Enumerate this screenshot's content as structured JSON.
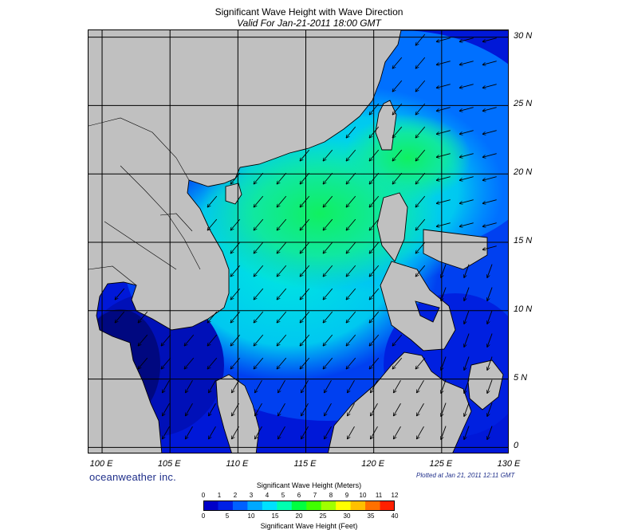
{
  "title": "Significant Wave Height with Wave Direction",
  "subtitle": "Valid For Jan-21-2011 18:00 GMT",
  "map": {
    "lon_range": [
      99,
      130
    ],
    "lat_range": [
      -0.5,
      30.5
    ],
    "lat_labels": [
      "30 N",
      "25 N",
      "20 N",
      "15 N",
      "10 N",
      "5 N",
      "0"
    ],
    "lat_values": [
      30,
      25,
      20,
      15,
      10,
      5,
      0
    ],
    "lon_labels": [
      "100 E",
      "105 E",
      "110 E",
      "115 E",
      "120 E",
      "125 E",
      "130 E"
    ],
    "lon_values": [
      100,
      105,
      110,
      115,
      120,
      125,
      130
    ],
    "land_color": "#c0c0c0",
    "grid_color": "#000000",
    "arrow_color": "#000000"
  },
  "brand": "oceanweather inc.",
  "plotted": "Plotted at Jan 21, 2011 12:11 GMT",
  "colorbar": {
    "title_meters": "Significant Wave Height (Meters)",
    "title_feet": "Significant Wave Height (Feet)",
    "meters_ticks": [
      "0",
      "1",
      "2",
      "3",
      "4",
      "5",
      "6",
      "7",
      "8",
      "9",
      "10",
      "11",
      "12"
    ],
    "feet_ticks": [
      "0",
      "5",
      "10",
      "15",
      "20",
      "25",
      "30",
      "35",
      "40"
    ],
    "max_meters": 12,
    "max_feet": 40,
    "colors": [
      "#0000c8",
      "#0020e6",
      "#0060ff",
      "#00a8ff",
      "#00e0ff",
      "#00ffb0",
      "#00ff40",
      "#40ff00",
      "#a0ff00",
      "#ffff00",
      "#ffc000",
      "#ff7000",
      "#ff2000"
    ]
  }
}
